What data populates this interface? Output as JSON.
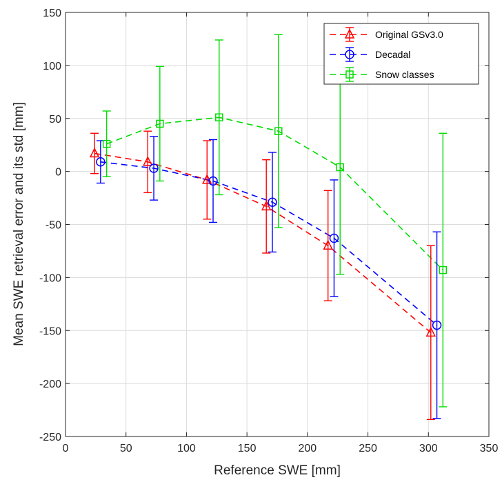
{
  "chart_data": {
    "type": "line",
    "title": "",
    "xlabel": "Reference SWE [mm]",
    "ylabel": "Mean SWE retrieval error and its std [mm]",
    "xlim": [
      0,
      350
    ],
    "ylim": [
      -250,
      150
    ],
    "xticks": [
      0,
      50,
      100,
      150,
      200,
      250,
      300,
      350
    ],
    "yticks": [
      -250,
      -200,
      -150,
      -100,
      -50,
      0,
      50,
      100,
      150
    ],
    "grid": true,
    "legend_position": "top-right",
    "series": [
      {
        "name": "Original GSv3.0",
        "color": "#ff0000",
        "marker": "triangle",
        "line_style": "dashed",
        "x": [
          24,
          68,
          117,
          166,
          217,
          302
        ],
        "y": [
          17,
          9,
          -8,
          -33,
          -70,
          -152
        ],
        "err": [
          19,
          29,
          37,
          44,
          52,
          82
        ]
      },
      {
        "name": "Decadal",
        "color": "#0000ff",
        "marker": "circle",
        "line_style": "dashed",
        "x": [
          29,
          73,
          122,
          171,
          222,
          307
        ],
        "y": [
          9,
          3,
          -9,
          -29,
          -63,
          -145
        ],
        "err": [
          20,
          30,
          39,
          47,
          55,
          88
        ]
      },
      {
        "name": "Snow classes",
        "color": "#00dd00",
        "marker": "square",
        "line_style": "dashed",
        "x": [
          34,
          78,
          127,
          176,
          227,
          312
        ],
        "y": [
          26,
          45,
          51,
          38,
          4,
          -93
        ],
        "err": [
          31,
          54,
          73,
          91,
          101,
          129
        ]
      }
    ]
  }
}
